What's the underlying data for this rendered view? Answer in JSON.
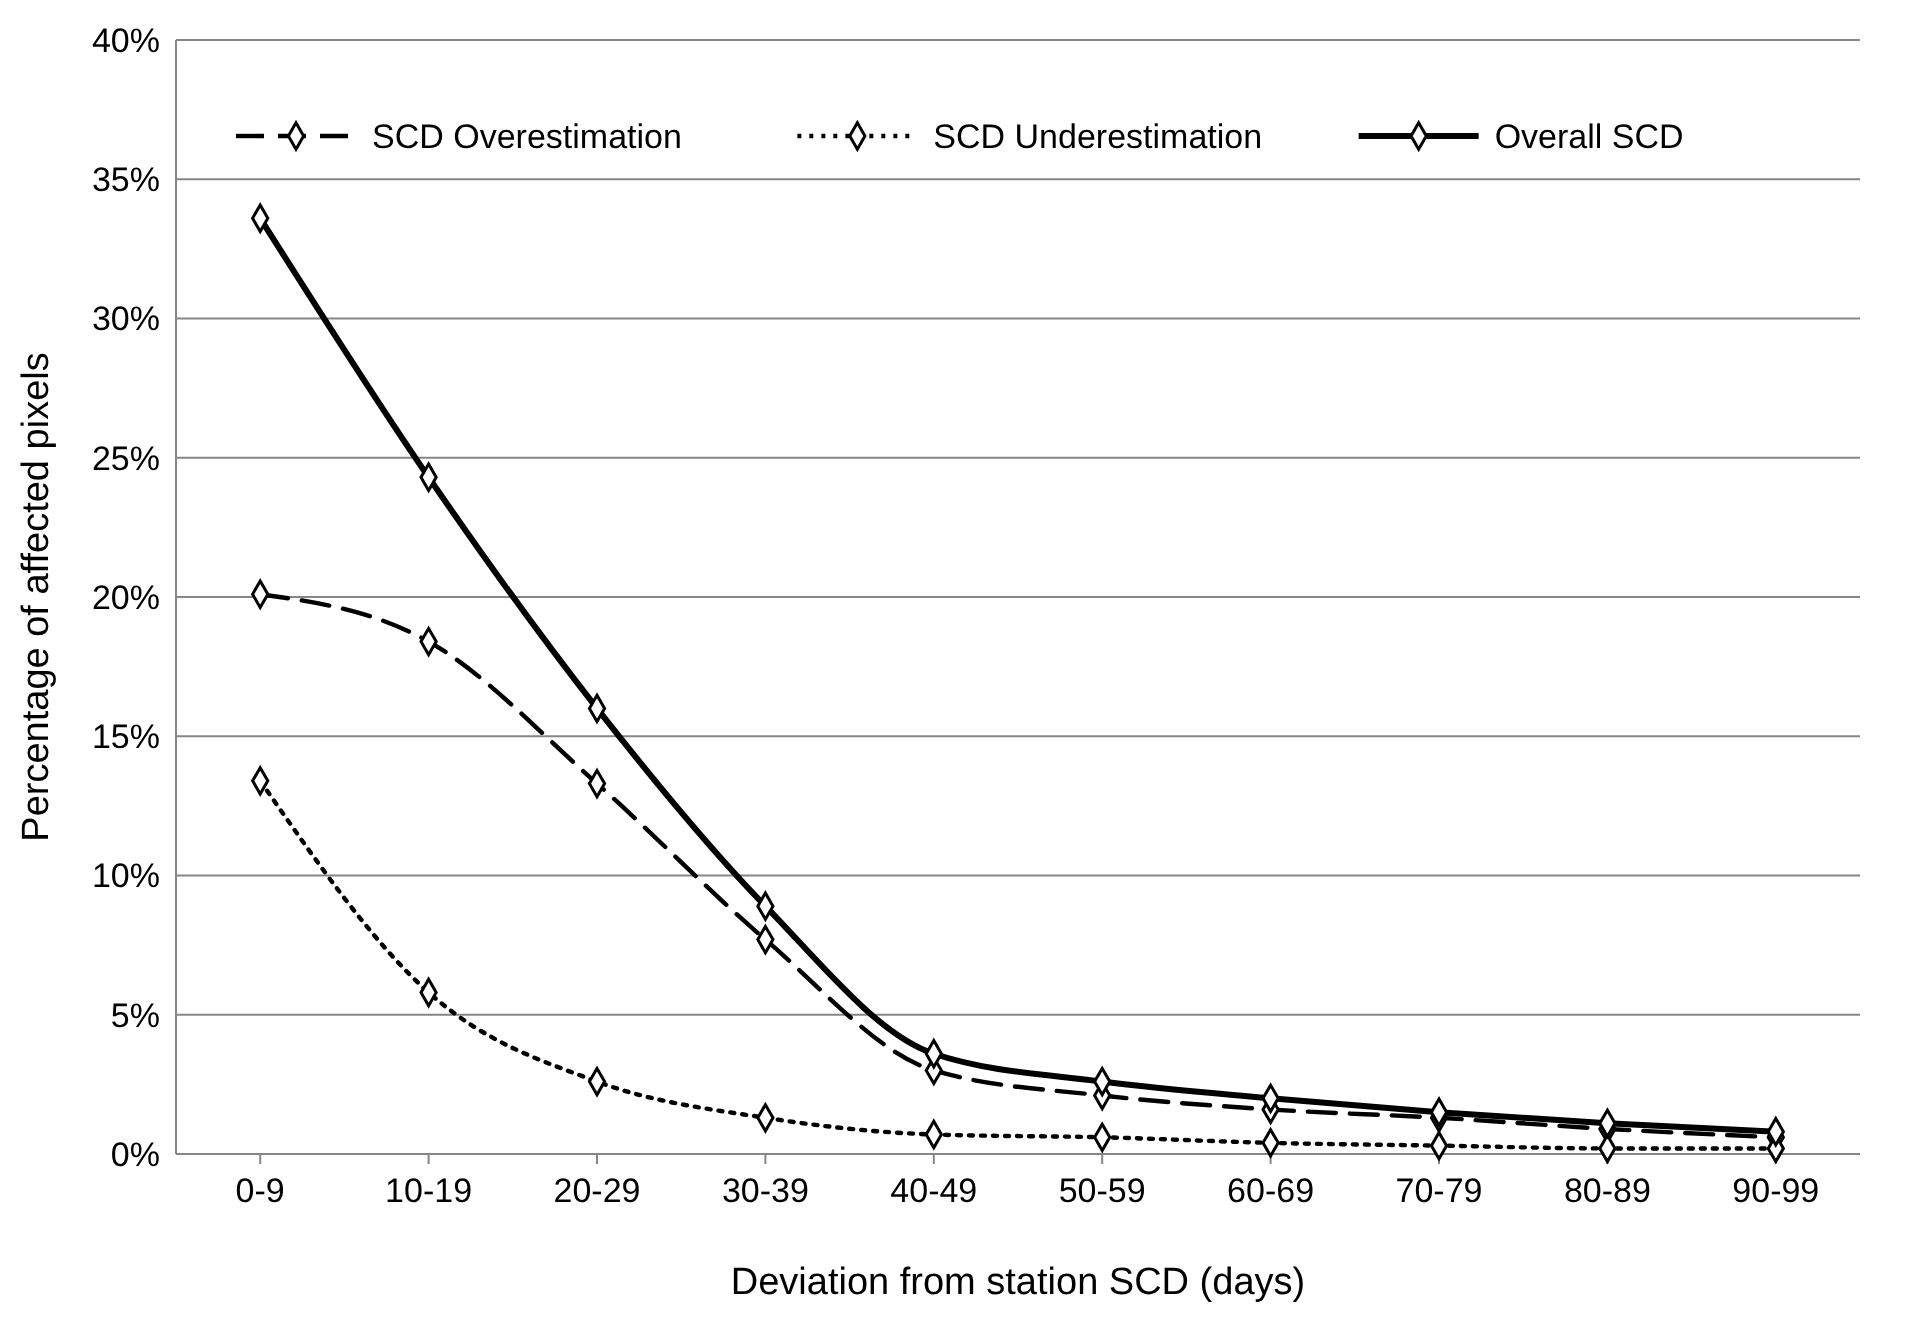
{
  "chart_data": {
    "type": "line",
    "xlabel": "Deviation from station SCD (days)",
    "ylabel": "Percentage of affected pixels",
    "categories": [
      "0-9",
      "10-19",
      "20-29",
      "30-39",
      "40-49",
      "50-59",
      "60-69",
      "70-79",
      "80-89",
      "90-99"
    ],
    "series": [
      {
        "name": "SCD Overestimation",
        "color": "#000000",
        "line_style": "dashed",
        "values": [
          20.1,
          18.4,
          13.3,
          7.7,
          3.0,
          2.1,
          1.6,
          1.3,
          0.9,
          0.6
        ]
      },
      {
        "name": "SCD Underestimation",
        "color": "#000000",
        "line_style": "dotted",
        "values": [
          13.4,
          5.8,
          2.6,
          1.3,
          0.7,
          0.6,
          0.4,
          0.3,
          0.2,
          0.2
        ]
      },
      {
        "name": "Overall SCD",
        "color": "#000000",
        "line_style": "solid",
        "values": [
          33.6,
          24.3,
          16.0,
          8.9,
          3.6,
          2.6,
          2.0,
          1.5,
          1.1,
          0.8
        ]
      }
    ],
    "ylim": [
      0,
      40
    ],
    "yticks": [
      {
        "value": 0,
        "label": "0%"
      },
      {
        "value": 5,
        "label": "5%"
      },
      {
        "value": 10,
        "label": "10%"
      },
      {
        "value": 15,
        "label": "15%"
      },
      {
        "value": 20,
        "label": "20%"
      },
      {
        "value": 25,
        "label": "25%"
      },
      {
        "value": 30,
        "label": "30%"
      },
      {
        "value": 35,
        "label": "35%"
      },
      {
        "value": 40,
        "label": "40%"
      }
    ],
    "grid": "y",
    "legend": "top",
    "marker": "diamond"
  }
}
